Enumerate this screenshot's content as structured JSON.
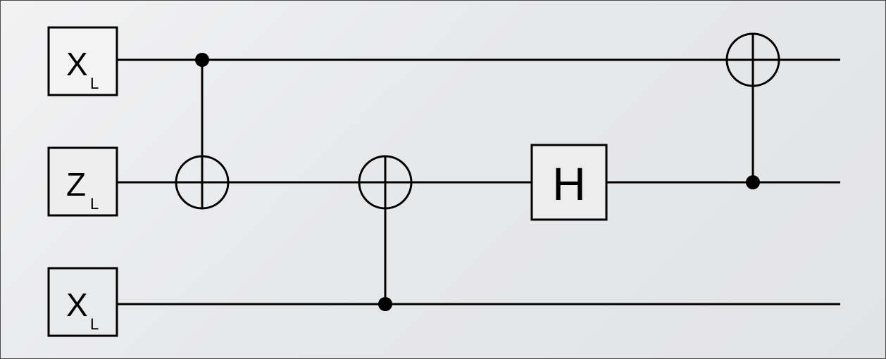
{
  "inputs": [
    {
      "main": "X",
      "sub": "L"
    },
    {
      "main": "Z",
      "sub": "L"
    },
    {
      "main": "X",
      "sub": "L"
    }
  ],
  "gates": [
    {
      "type": "cnot",
      "control": 0,
      "target": 1
    },
    {
      "type": "cnot",
      "control": 2,
      "target": 1
    },
    {
      "type": "h",
      "wire": 1,
      "label": "H"
    },
    {
      "type": "cnot",
      "control": 1,
      "target": 0
    }
  ]
}
